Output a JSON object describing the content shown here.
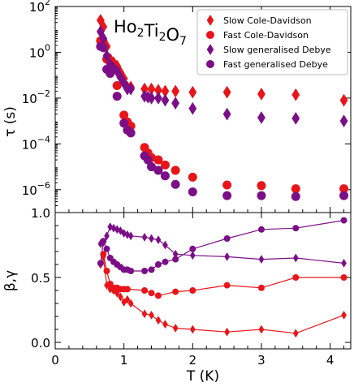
{
  "chart_data": [
    {
      "type": "scatter",
      "panel": "top",
      "annotation": {
        "base": [
          "Ho",
          "Ti",
          "O"
        ],
        "subs": [
          "2",
          "2",
          "7"
        ]
      },
      "ylabel": "τ (s)",
      "yscale": "log",
      "ylim": [
        1e-07,
        100
      ],
      "xlim": [
        0,
        4.3
      ],
      "y_ticks": [
        {
          "value": 1e-06,
          "base": "10",
          "exp": "−6"
        },
        {
          "value": 0.0001,
          "base": "10",
          "exp": "−4"
        },
        {
          "value": 0.01,
          "base": "10",
          "exp": "−2"
        },
        {
          "value": 1,
          "base": "10",
          "exp": "0"
        },
        {
          "value": 100,
          "base": "10",
          "exp": "2"
        }
      ],
      "legend_position": "top-right",
      "series": [
        {
          "name": "Slow Cole-Davidson",
          "color": "#e8151b",
          "marker": "diamond",
          "points": [
            [
              0.66,
              25
            ],
            [
              0.7,
              13
            ],
            [
              0.75,
              1.8
            ],
            [
              0.8,
              0.5
            ],
            [
              0.85,
              0.35
            ],
            [
              0.9,
              0.25
            ],
            [
              0.95,
              0.13
            ],
            [
              1.0,
              0.07
            ],
            [
              1.05,
              0.03
            ],
            [
              1.1,
              0.03
            ],
            [
              1.3,
              0.025
            ],
            [
              1.4,
              0.025
            ],
            [
              1.5,
              0.022
            ],
            [
              1.6,
              0.02
            ],
            [
              1.75,
              0.02
            ],
            [
              2.0,
              0.018
            ],
            [
              2.5,
              0.018
            ],
            [
              3.0,
              0.015
            ],
            [
              3.5,
              0.014
            ],
            [
              4.2,
              0.008
            ]
          ]
        },
        {
          "name": "Fast Cole-Davidson",
          "color": "#e8151b",
          "marker": "circle",
          "points": [
            [
              0.66,
              3.2
            ],
            [
              0.7,
              2.8
            ],
            [
              0.75,
              0.5
            ],
            [
              0.8,
              0.18
            ],
            [
              0.9,
              0.035
            ],
            [
              1.0,
              0.0018
            ],
            [
              1.05,
              0.0009
            ],
            [
              1.1,
              0.0006
            ],
            [
              1.3,
              7e-05
            ],
            [
              1.35,
              4e-05
            ],
            [
              1.4,
              2.5e-05
            ],
            [
              1.5,
              2e-05
            ],
            [
              1.6,
              1.2e-05
            ],
            [
              1.75,
              7e-06
            ],
            [
              2.0,
              3.5e-06
            ],
            [
              2.5,
              1.6e-06
            ],
            [
              3.0,
              1.5e-06
            ],
            [
              3.5,
              1.1e-06
            ],
            [
              4.2,
              1.1e-06
            ]
          ]
        },
        {
          "name": "Slow generalised Debye",
          "color": "#7b0f87",
          "marker": "diamond",
          "points": [
            [
              0.66,
              8
            ],
            [
              0.7,
              4
            ],
            [
              0.75,
              0.7
            ],
            [
              0.8,
              0.3
            ],
            [
              0.85,
              0.2
            ],
            [
              0.9,
              0.15
            ],
            [
              0.95,
              0.08
            ],
            [
              1.0,
              0.045
            ],
            [
              1.05,
              0.025
            ],
            [
              1.1,
              0.025
            ],
            [
              1.3,
              0.012
            ],
            [
              1.35,
              0.011
            ],
            [
              1.4,
              0.01
            ],
            [
              1.5,
              0.01
            ],
            [
              1.6,
              0.008
            ],
            [
              1.75,
              0.006
            ],
            [
              2.0,
              0.0035
            ],
            [
              2.5,
              0.002
            ],
            [
              3.0,
              0.0014
            ],
            [
              3.5,
              0.0013
            ],
            [
              4.2,
              0.001
            ]
          ]
        },
        {
          "name": "Fast generalised Debye",
          "color": "#7b0f87",
          "marker": "circle",
          "points": [
            [
              0.66,
              1.8
            ],
            [
              0.7,
              1.6
            ],
            [
              0.75,
              0.18
            ],
            [
              0.8,
              0.12
            ],
            [
              0.9,
              0.012
            ],
            [
              1.0,
              0.0008
            ],
            [
              1.05,
              0.0004
            ],
            [
              1.1,
              0.0003
            ],
            [
              1.3,
              3e-05
            ],
            [
              1.35,
              2e-05
            ],
            [
              1.4,
              1e-05
            ],
            [
              1.5,
              7e-06
            ],
            [
              1.6,
              4e-06
            ],
            [
              1.75,
              1.7e-06
            ],
            [
              2.0,
              8e-07
            ],
            [
              2.5,
              5.5e-07
            ],
            [
              3.0,
              5.5e-07
            ],
            [
              3.5,
              5e-07
            ],
            [
              4.2,
              5.5e-07
            ]
          ]
        }
      ]
    },
    {
      "type": "line",
      "panel": "bottom",
      "xlabel": "T (K)",
      "ylabel": "β,γ",
      "xlim": [
        0,
        4.3
      ],
      "ylim": [
        -0.05,
        1.0
      ],
      "x_ticks": [
        "0",
        "1",
        "2",
        "3",
        "4"
      ],
      "y_ticks": [
        "0.0",
        "0.5",
        "1.0"
      ],
      "series": [
        {
          "color": "#e8151b",
          "marker": "diamond",
          "points": [
            [
              0.66,
              0.6
            ],
            [
              0.7,
              0.66
            ],
            [
              0.75,
              0.44
            ],
            [
              0.8,
              0.41
            ],
            [
              0.85,
              0.4
            ],
            [
              0.9,
              0.38
            ],
            [
              0.95,
              0.35
            ],
            [
              1.0,
              0.31
            ],
            [
              1.05,
              0.33
            ],
            [
              1.1,
              0.3
            ],
            [
              1.3,
              0.22
            ],
            [
              1.4,
              0.21
            ],
            [
              1.5,
              0.17
            ],
            [
              1.6,
              0.14
            ],
            [
              1.75,
              0.11
            ],
            [
              2.0,
              0.1
            ],
            [
              2.5,
              0.08
            ],
            [
              3.0,
              0.1
            ],
            [
              3.5,
              0.07
            ],
            [
              4.2,
              0.21
            ]
          ]
        },
        {
          "color": "#e8151b",
          "marker": "circle",
          "points": [
            [
              0.7,
              0.68
            ],
            [
              0.75,
              0.55
            ],
            [
              0.8,
              0.45
            ],
            [
              0.85,
              0.42
            ],
            [
              0.9,
              0.42
            ],
            [
              0.95,
              0.41
            ],
            [
              1.0,
              0.41
            ],
            [
              1.05,
              0.41
            ],
            [
              1.3,
              0.4
            ],
            [
              1.4,
              0.38
            ],
            [
              1.5,
              0.36
            ],
            [
              1.75,
              0.39
            ],
            [
              2.0,
              0.4
            ],
            [
              2.5,
              0.44
            ],
            [
              3.0,
              0.42
            ],
            [
              3.5,
              0.5
            ],
            [
              4.2,
              0.5
            ]
          ]
        },
        {
          "color": "#7b0f87",
          "marker": "diamond",
          "points": [
            [
              0.66,
              0.76
            ],
            [
              0.7,
              0.77
            ],
            [
              0.75,
              0.82
            ],
            [
              0.8,
              0.89
            ],
            [
              0.85,
              0.88
            ],
            [
              0.9,
              0.87
            ],
            [
              0.95,
              0.86
            ],
            [
              1.0,
              0.84
            ],
            [
              1.05,
              0.83
            ],
            [
              1.1,
              0.82
            ],
            [
              1.3,
              0.81
            ],
            [
              1.4,
              0.8
            ],
            [
              1.5,
              0.79
            ],
            [
              1.6,
              0.75
            ],
            [
              1.75,
              0.68
            ],
            [
              2.0,
              0.67
            ],
            [
              2.5,
              0.66
            ],
            [
              3.0,
              0.64
            ],
            [
              3.5,
              0.65
            ],
            [
              4.2,
              0.61
            ]
          ]
        },
        {
          "color": "#7b0f87",
          "marker": "circle",
          "points": [
            [
              0.66,
              0.61
            ],
            [
              0.7,
              0.78
            ],
            [
              0.75,
              0.72
            ],
            [
              0.8,
              0.65
            ],
            [
              0.85,
              0.62
            ],
            [
              0.9,
              0.6
            ],
            [
              0.95,
              0.58
            ],
            [
              1.0,
              0.56
            ],
            [
              1.05,
              0.56
            ],
            [
              1.1,
              0.55
            ],
            [
              1.3,
              0.55
            ],
            [
              1.4,
              0.56
            ],
            [
              1.5,
              0.6
            ],
            [
              1.6,
              0.62
            ],
            [
              1.75,
              0.64
            ],
            [
              2.0,
              0.72
            ],
            [
              2.5,
              0.8
            ],
            [
              3.0,
              0.87
            ],
            [
              3.5,
              0.88
            ],
            [
              4.2,
              0.94
            ]
          ]
        }
      ]
    }
  ]
}
